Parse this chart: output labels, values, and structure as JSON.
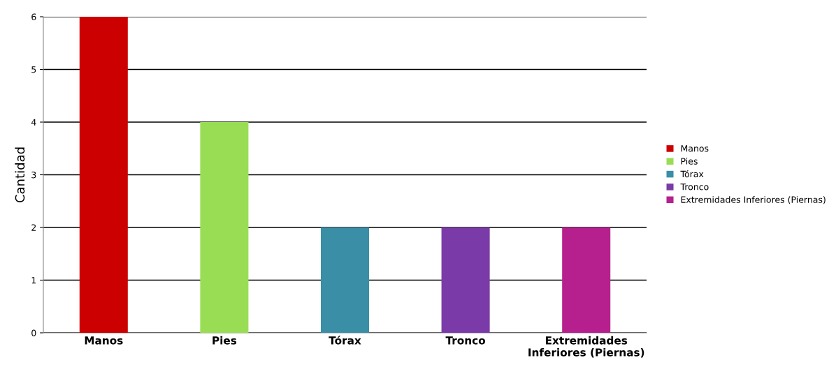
{
  "chart_data": {
    "type": "bar",
    "ylabel": "Cantidad",
    "categories": [
      "Manos",
      "Pies",
      "Tórax",
      "Tronco",
      "Extremidades Inferiores (Piernas)"
    ],
    "series": [
      {
        "name": "Manos",
        "color": "#cc0000",
        "values": [
          6,
          null,
          null,
          null,
          null
        ]
      },
      {
        "name": "Pies",
        "color": "#99dd55",
        "values": [
          null,
          4,
          null,
          null,
          null
        ]
      },
      {
        "name": "Tórax",
        "color": "#3a8ea5",
        "values": [
          null,
          null,
          2,
          null,
          null
        ]
      },
      {
        "name": "Tronco",
        "color": "#7a3aa8",
        "values": [
          null,
          null,
          null,
          2,
          null
        ]
      },
      {
        "name": "Extremidades Inferiores (Piernas)",
        "color": "#b5208e",
        "values": [
          null,
          null,
          null,
          null,
          2
        ]
      }
    ],
    "ylim": [
      0,
      6
    ],
    "yticks": [
      0,
      1,
      2,
      3,
      4,
      5,
      6
    ],
    "grid": "y",
    "legend": "right"
  }
}
